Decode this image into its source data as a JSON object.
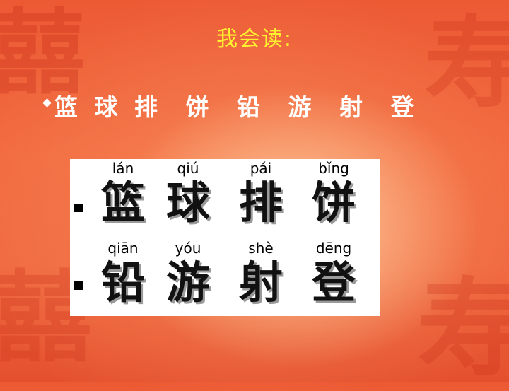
{
  "slide": {
    "title": "我会读:",
    "bullet_chars": [
      "篮",
      "球",
      "排",
      "饼",
      "铅",
      "游",
      "射",
      "登"
    ]
  },
  "card": {
    "rows": [
      {
        "cells": [
          {
            "pinyin": "lán",
            "hanzi": "篮"
          },
          {
            "pinyin": "qiú",
            "hanzi": "球"
          },
          {
            "pinyin": "pái",
            "hanzi": "排"
          },
          {
            "pinyin": "bǐng",
            "hanzi": "饼"
          }
        ]
      },
      {
        "cells": [
          {
            "pinyin": "qiān",
            "hanzi": "铅"
          },
          {
            "pinyin": "yóu",
            "hanzi": "游"
          },
          {
            "pinyin": "shè",
            "hanzi": "射"
          },
          {
            "pinyin": "dēng",
            "hanzi": "登"
          }
        ]
      }
    ]
  },
  "colors": {
    "background": "#f0683f",
    "title": "#fff230",
    "bullet_text": "#ffffff"
  }
}
